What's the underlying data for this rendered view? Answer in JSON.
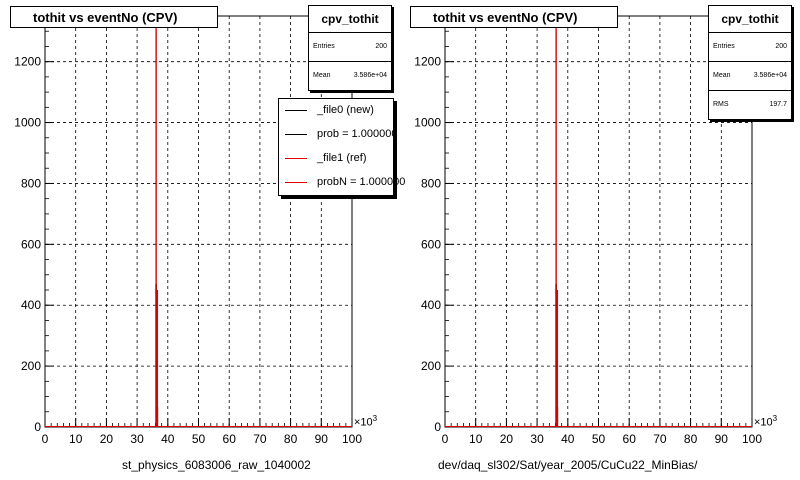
{
  "chart_data": [
    {
      "type": "bar",
      "title": "tothit vs eventNo (CPV)",
      "xlabel": "st_physics_6083006_raw_1040002",
      "x_exponent_base": "×10",
      "x_exponent_power": "3",
      "xlim": [
        0,
        100
      ],
      "ylim": [
        0,
        1350
      ],
      "x_ticks": [
        0,
        10,
        20,
        30,
        40,
        50,
        60,
        70,
        80,
        90,
        100
      ],
      "y_ticks": [
        0,
        200,
        400,
        600,
        800,
        1000,
        1200
      ],
      "grid": true,
      "series": [
        {
          "name": "_file0 (new)",
          "color": "#000000",
          "x": [
            36.2,
            36.6
          ],
          "values": [
            470,
            65
          ]
        },
        {
          "name": "_file1 (ref)",
          "color": "#dd0000",
          "x": [
            36.2,
            36.6
          ],
          "values": [
            1310,
            450
          ]
        }
      ],
      "stats": {
        "title": "cpv_tothit",
        "rows": [
          {
            "key": "Entries",
            "value": "200"
          },
          {
            "key": "Mean",
            "value": "3.586e+04"
          }
        ]
      },
      "legend": {
        "placement": "top-right",
        "entries": [
          {
            "label": "_file0 (new)",
            "color": "#000000"
          },
          {
            "label": "prob = 1.000000",
            "color": "#000000"
          },
          {
            "label": "_file1 (ref)",
            "color": "#dd0000"
          },
          {
            "label": "probN = 1.000000",
            "color": "#dd0000"
          }
        ]
      }
    },
    {
      "type": "bar",
      "title": "tothit vs eventNo (CPV)",
      "xlabel": "dev/daq_sl302/Sat/year_2005/CuCu22_MinBias/",
      "x_exponent_base": "×10",
      "x_exponent_power": "3",
      "xlim": [
        0,
        100
      ],
      "ylim": [
        0,
        1350
      ],
      "x_ticks": [
        0,
        10,
        20,
        30,
        40,
        50,
        60,
        70,
        80,
        90,
        100
      ],
      "y_ticks": [
        0,
        200,
        400,
        600,
        800,
        1000,
        1200
      ],
      "grid": true,
      "series": [
        {
          "name": "_file0 (new)",
          "color": "#000000",
          "x": [
            36.2,
            36.6
          ],
          "values": [
            470,
            65
          ]
        },
        {
          "name": "_file1 (ref)",
          "color": "#dd0000",
          "x": [
            36.2,
            36.6
          ],
          "values": [
            1310,
            450
          ]
        }
      ],
      "stats": {
        "title": "cpv_tothit",
        "rows": [
          {
            "key": "Entries",
            "value": "200"
          },
          {
            "key": "Mean",
            "value": "3.586e+04"
          },
          {
            "key": "RMS",
            "value": "197.7"
          }
        ]
      }
    }
  ]
}
